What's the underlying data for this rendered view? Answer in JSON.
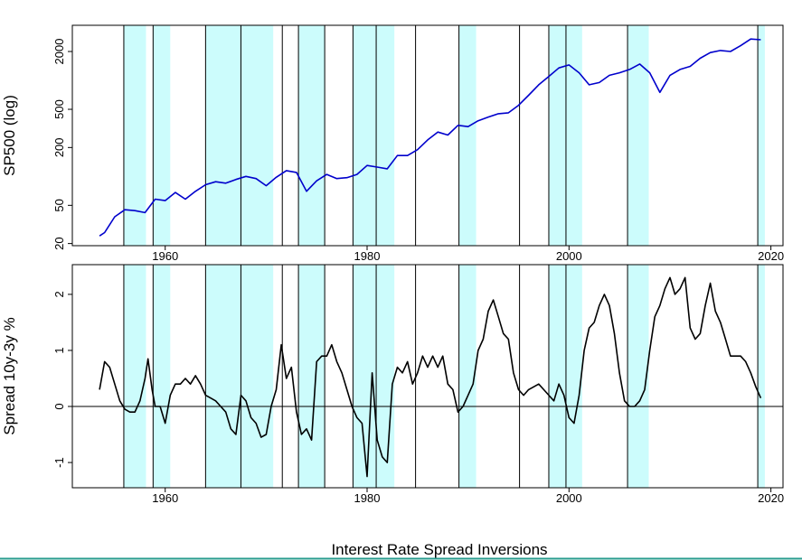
{
  "chart_data": [
    {
      "type": "line",
      "ylabel": "SP500 (log)",
      "log_scale": true,
      "color": "#0000cc",
      "xlim": [
        1950.8,
        2021.2
      ],
      "xticks": [
        1960,
        1980,
        2000,
        2020
      ],
      "ylim": [
        19,
        3750
      ],
      "yticks": [
        20,
        50,
        200,
        500,
        2000
      ],
      "shaded_periods": [
        [
          1955.9,
          1958.1
        ],
        [
          1958.8,
          1960.5
        ],
        [
          1964.0,
          1970.7
        ],
        [
          1973.2,
          1975.8
        ],
        [
          1978.6,
          1982.7
        ],
        [
          1989.1,
          1990.8
        ],
        [
          1998.0,
          2001.3
        ],
        [
          2005.8,
          2007.9
        ],
        [
          2018.7,
          2019.4
        ]
      ],
      "marker_lines": [
        1955.9,
        1958.8,
        1964.0,
        1967.5,
        1971.6,
        1973.2,
        1975.8,
        1978.6,
        1980.9,
        1984.8,
        1989.1,
        1995.1,
        1998.0,
        1999.7,
        2005.8,
        2018.7
      ],
      "x": [
        1953.5,
        1954,
        1955,
        1956,
        1957,
        1958,
        1959,
        1960,
        1961,
        1962,
        1963,
        1964,
        1965,
        1966,
        1967,
        1968,
        1969,
        1970,
        1971,
        1972,
        1973,
        1974,
        1975,
        1976,
        1977,
        1978,
        1979,
        1980,
        1981,
        1982,
        1983,
        1984,
        1985,
        1986,
        1987,
        1988,
        1989,
        1990,
        1991,
        1992,
        1993,
        1994,
        1995,
        1996,
        1997,
        1998,
        1999,
        2000,
        2001,
        2002,
        2003,
        2004,
        2005,
        2006,
        2007,
        2008,
        2009,
        2010,
        2011,
        2012,
        2013,
        2014,
        2015,
        2016,
        2017,
        2018,
        2019
      ],
      "values": [
        24,
        26,
        38,
        45,
        44,
        42,
        58,
        56,
        68,
        58,
        70,
        82,
        88,
        85,
        93,
        100,
        95,
        80,
        98,
        115,
        110,
        70,
        90,
        105,
        95,
        97,
        105,
        130,
        125,
        120,
        165,
        165,
        190,
        240,
        290,
        270,
        340,
        330,
        380,
        415,
        450,
        460,
        550,
        700,
        900,
        1100,
        1350,
        1450,
        1200,
        900,
        950,
        1130,
        1200,
        1300,
        1480,
        1200,
        750,
        1130,
        1300,
        1400,
        1700,
        1950,
        2050,
        2000,
        2300,
        2700,
        2650
      ]
    },
    {
      "type": "line",
      "ylabel": "Spread 10y-3y %",
      "xlabel": "Interest Rate Spread Inversions",
      "color": "#000000",
      "xlim": [
        1950.8,
        2021.2
      ],
      "xticks": [
        1960,
        1980,
        2000,
        2020
      ],
      "ylim": [
        -1.45,
        2.53
      ],
      "yticks": [
        -1,
        0,
        1,
        2
      ],
      "hline": 0,
      "shaded_periods": [
        [
          1955.9,
          1958.1
        ],
        [
          1958.8,
          1960.5
        ],
        [
          1964.0,
          1970.7
        ],
        [
          1973.2,
          1975.8
        ],
        [
          1978.6,
          1982.7
        ],
        [
          1989.1,
          1990.8
        ],
        [
          1998.0,
          2001.3
        ],
        [
          2005.8,
          2007.9
        ],
        [
          2018.7,
          2019.4
        ]
      ],
      "marker_lines": [
        1955.9,
        1958.8,
        1964.0,
        1967.5,
        1971.6,
        1973.2,
        1975.8,
        1978.6,
        1980.9,
        1984.8,
        1989.1,
        1995.1,
        1998.0,
        1999.7,
        2005.8,
        2018.7
      ],
      "x": [
        1953.5,
        1954,
        1954.5,
        1955,
        1955.5,
        1956,
        1956.5,
        1957,
        1957.5,
        1958,
        1958.3,
        1958.7,
        1959,
        1959.5,
        1960,
        1960.5,
        1961,
        1961.5,
        1962,
        1962.5,
        1963,
        1963.5,
        1964,
        1964.5,
        1965,
        1965.5,
        1966,
        1966.5,
        1967,
        1967.5,
        1968,
        1968.5,
        1969,
        1969.5,
        1970,
        1970.5,
        1971,
        1971.5,
        1972,
        1972.5,
        1973,
        1973.5,
        1974,
        1974.5,
        1975,
        1975.5,
        1976,
        1976.5,
        1977,
        1977.5,
        1978,
        1978.5,
        1979,
        1979.5,
        1980,
        1980.5,
        1981,
        1981.5,
        1982,
        1982.5,
        1983,
        1983.5,
        1984,
        1984.5,
        1985,
        1985.5,
        1986,
        1986.5,
        1987,
        1987.5,
        1988,
        1988.5,
        1989,
        1989.5,
        1990,
        1990.5,
        1991,
        1991.5,
        1992,
        1992.5,
        1993,
        1993.5,
        1994,
        1994.5,
        1995,
        1995.5,
        1996,
        1996.5,
        1997,
        1997.5,
        1998,
        1998.5,
        1999,
        1999.5,
        2000,
        2000.5,
        2001,
        2001.5,
        2002,
        2002.5,
        2003,
        2003.5,
        2004,
        2004.5,
        2005,
        2005.5,
        2006,
        2006.5,
        2007,
        2007.5,
        2008,
        2008.5,
        2009,
        2009.5,
        2010,
        2010.5,
        2011,
        2011.5,
        2012,
        2012.5,
        2013,
        2013.5,
        2014,
        2014.5,
        2015,
        2015.5,
        2016,
        2016.5,
        2017,
        2017.5,
        2018,
        2018.5,
        2019
      ],
      "values": [
        0.3,
        0.8,
        0.7,
        0.4,
        0.1,
        -0.05,
        -0.1,
        -0.1,
        0.1,
        0.5,
        0.85,
        0.3,
        0.0,
        0.0,
        -0.3,
        0.2,
        0.4,
        0.4,
        0.5,
        0.4,
        0.55,
        0.4,
        0.2,
        0.15,
        0.1,
        0.0,
        -0.1,
        -0.4,
        -0.5,
        0.2,
        0.1,
        -0.2,
        -0.3,
        -0.55,
        -0.5,
        0.0,
        0.3,
        1.1,
        0.5,
        0.7,
        -0.1,
        -0.5,
        -0.4,
        -0.6,
        0.8,
        0.9,
        0.9,
        1.1,
        0.8,
        0.6,
        0.3,
        0.0,
        -0.2,
        -0.3,
        -1.25,
        0.6,
        -0.6,
        -0.9,
        -1.0,
        0.4,
        0.7,
        0.6,
        0.8,
        0.4,
        0.6,
        0.9,
        0.7,
        0.9,
        0.7,
        0.9,
        0.4,
        0.3,
        -0.1,
        0.0,
        0.2,
        0.4,
        1.0,
        1.2,
        1.7,
        1.9,
        1.6,
        1.3,
        1.2,
        0.6,
        0.3,
        0.2,
        0.3,
        0.35,
        0.4,
        0.3,
        0.2,
        0.1,
        0.4,
        0.2,
        -0.2,
        -0.3,
        0.2,
        1.0,
        1.4,
        1.5,
        1.8,
        2.0,
        1.8,
        1.3,
        0.6,
        0.1,
        0.0,
        0.0,
        0.1,
        0.3,
        1.0,
        1.6,
        1.8,
        2.1,
        2.3,
        2.0,
        2.1,
        2.3,
        1.4,
        1.2,
        1.3,
        1.8,
        2.2,
        1.7,
        1.5,
        1.2,
        0.9,
        0.9,
        0.9,
        0.8,
        0.6,
        0.35,
        0.15
      ]
    }
  ]
}
